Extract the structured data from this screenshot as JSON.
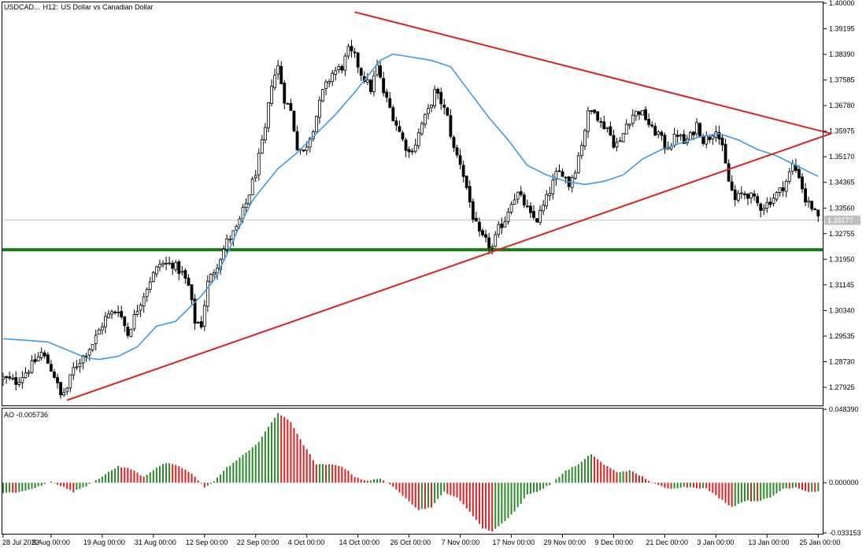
{
  "chart_data": [
    {
      "type": "candlestick",
      "header": {
        "symbol": "USDCAD...",
        "timeframe": "H12:",
        "description": "US Dollar vs Canadian Dollar"
      },
      "y_axis": {
        "range": [
          1.2738,
          1.4
        ],
        "tick_labels": [
          "1.40000",
          "1.39195",
          "1.38390",
          "1.37585",
          "1.36780",
          "1.35975",
          "1.35170",
          "1.34365",
          "1.33560",
          "1.32755",
          "1.31950",
          "1.31145",
          "1.30340",
          "1.29535",
          "1.28730",
          "1.27925"
        ],
        "current_price_label": "1.33177",
        "current_price": 1.33177
      },
      "x_axis": {
        "bar_count": 256,
        "tick_labels": [
          {
            "label": "28 Jul 2022",
            "bar": 0
          },
          {
            "label": "9 Aug 00:00",
            "bar": 15
          },
          {
            "label": "19 Aug 00:00",
            "bar": 31
          },
          {
            "label": "31 Aug 00:00",
            "bar": 47
          },
          {
            "label": "12 Sep 00:00",
            "bar": 63
          },
          {
            "label": "22 Sep 00:00",
            "bar": 79
          },
          {
            "label": "4 Oct 00:00",
            "bar": 95
          },
          {
            "label": "14 Oct 00:00",
            "bar": 111
          },
          {
            "label": "26 Oct 00:00",
            "bar": 127
          },
          {
            "label": "7 Nov 00:00",
            "bar": 143
          },
          {
            "label": "17 Nov 00:00",
            "bar": 159
          },
          {
            "label": "29 Nov 00:00",
            "bar": 175
          },
          {
            "label": "9 Dec 00:00",
            "bar": 191
          },
          {
            "label": "21 Dec 00:00",
            "bar": 207
          },
          {
            "label": "3 Jan 00:00",
            "bar": 223
          },
          {
            "label": "13 Jan 00:00",
            "bar": 239
          },
          {
            "label": "25 Jan 00:00",
            "bar": 255
          }
        ]
      },
      "close_anchors": [
        [
          0,
          1.282
        ],
        [
          4,
          1.281
        ],
        [
          8,
          1.285
        ],
        [
          12,
          1.29
        ],
        [
          14,
          1.287
        ],
        [
          16,
          1.283
        ],
        [
          18,
          1.2765
        ],
        [
          20,
          1.279
        ],
        [
          22,
          1.285
        ],
        [
          25,
          1.289
        ],
        [
          28,
          1.293
        ],
        [
          32,
          1.301
        ],
        [
          36,
          1.304
        ],
        [
          39,
          1.296
        ],
        [
          42,
          1.304
        ],
        [
          46,
          1.313
        ],
        [
          49,
          1.318
        ],
        [
          53,
          1.318
        ],
        [
          56,
          1.315
        ],
        [
          58,
          1.311
        ],
        [
          60,
          1.3
        ],
        [
          62,
          1.299
        ],
        [
          64,
          1.312
        ],
        [
          67,
          1.318
        ],
        [
          70,
          1.325
        ],
        [
          73,
          1.329
        ],
        [
          76,
          1.337
        ],
        [
          79,
          1.347
        ],
        [
          82,
          1.36
        ],
        [
          84,
          1.375
        ],
        [
          86,
          1.38
        ],
        [
          88,
          1.37
        ],
        [
          90,
          1.366
        ],
        [
          92,
          1.355
        ],
        [
          94,
          1.353
        ],
        [
          97,
          1.361
        ],
        [
          100,
          1.372
        ],
        [
          103,
          1.378
        ],
        [
          106,
          1.38
        ],
        [
          108,
          1.385
        ],
        [
          110,
          1.383
        ],
        [
          112,
          1.378
        ],
        [
          115,
          1.373
        ],
        [
          117,
          1.38
        ],
        [
          119,
          1.372
        ],
        [
          121,
          1.367
        ],
        [
          123,
          1.362
        ],
        [
          125,
          1.357
        ],
        [
          127,
          1.353
        ],
        [
          129,
          1.356
        ],
        [
          131,
          1.362
        ],
        [
          133,
          1.366
        ],
        [
          135,
          1.372
        ],
        [
          137,
          1.369
        ],
        [
          139,
          1.364
        ],
        [
          141,
          1.354
        ],
        [
          143,
          1.35
        ],
        [
          145,
          1.342
        ],
        [
          147,
          1.333
        ],
        [
          149,
          1.327
        ],
        [
          151,
          1.325
        ],
        [
          153,
          1.323
        ],
        [
          155,
          1.329
        ],
        [
          157,
          1.332
        ],
        [
          159,
          1.338
        ],
        [
          161,
          1.34
        ],
        [
          163,
          1.337
        ],
        [
          165,
          1.333
        ],
        [
          167,
          1.332
        ],
        [
          169,
          1.336
        ],
        [
          171,
          1.341
        ],
        [
          173,
          1.346
        ],
        [
          175,
          1.347
        ],
        [
          177,
          1.343
        ],
        [
          179,
          1.348
        ],
        [
          181,
          1.356
        ],
        [
          183,
          1.365
        ],
        [
          185,
          1.367
        ],
        [
          187,
          1.362
        ],
        [
          189,
          1.361
        ],
        [
          191,
          1.356
        ],
        [
          193,
          1.356
        ],
        [
          195,
          1.362
        ],
        [
          197,
          1.365
        ],
        [
          199,
          1.366
        ],
        [
          201,
          1.364
        ],
        [
          203,
          1.36
        ],
        [
          205,
          1.359
        ],
        [
          207,
          1.355
        ],
        [
          209,
          1.356
        ],
        [
          211,
          1.359
        ],
        [
          213,
          1.356
        ],
        [
          215,
          1.358
        ],
        [
          217,
          1.362
        ],
        [
          219,
          1.357
        ],
        [
          221,
          1.358
        ],
        [
          223,
          1.361
        ],
        [
          225,
          1.354
        ],
        [
          227,
          1.344
        ],
        [
          229,
          1.338
        ],
        [
          231,
          1.34
        ],
        [
          233,
          1.34
        ],
        [
          235,
          1.338
        ],
        [
          237,
          1.336
        ],
        [
          239,
          1.337
        ],
        [
          241,
          1.339
        ],
        [
          243,
          1.341
        ],
        [
          245,
          1.344
        ],
        [
          247,
          1.349
        ],
        [
          249,
          1.346
        ],
        [
          251,
          1.338
        ],
        [
          253,
          1.336
        ],
        [
          255,
          1.3318
        ]
      ],
      "moving_average": {
        "color": "#3d9be9",
        "points": [
          [
            0,
            1.2945
          ],
          [
            8,
            1.294
          ],
          [
            14,
            1.2935
          ],
          [
            20,
            1.291
          ],
          [
            26,
            1.2885
          ],
          [
            30,
            1.288
          ],
          [
            36,
            1.289
          ],
          [
            42,
            1.292
          ],
          [
            48,
            1.2985
          ],
          [
            54,
            1.3
          ],
          [
            58,
            1.304
          ],
          [
            62,
            1.308
          ],
          [
            66,
            1.313
          ],
          [
            70,
            1.321
          ],
          [
            74,
            1.33
          ],
          [
            78,
            1.338
          ],
          [
            82,
            1.343
          ],
          [
            86,
            1.348
          ],
          [
            92,
            1.353
          ],
          [
            98,
            1.359
          ],
          [
            104,
            1.365
          ],
          [
            110,
            1.372
          ],
          [
            114,
            1.377
          ],
          [
            118,
            1.382
          ],
          [
            122,
            1.384
          ],
          [
            128,
            1.383
          ],
          [
            134,
            1.382
          ],
          [
            140,
            1.38
          ],
          [
            146,
            1.372
          ],
          [
            152,
            1.364
          ],
          [
            158,
            1.357
          ],
          [
            164,
            1.349
          ],
          [
            170,
            1.346
          ],
          [
            176,
            1.344
          ],
          [
            182,
            1.343
          ],
          [
            188,
            1.344
          ],
          [
            194,
            1.346
          ],
          [
            200,
            1.351
          ],
          [
            206,
            1.354
          ],
          [
            212,
            1.356
          ],
          [
            218,
            1.358
          ],
          [
            224,
            1.359
          ],
          [
            230,
            1.357
          ],
          [
            236,
            1.354
          ],
          [
            242,
            1.352
          ],
          [
            248,
            1.349
          ],
          [
            255,
            1.3455
          ]
        ]
      },
      "trendlines": [
        {
          "color": "#e02020",
          "from": [
            20,
            1.2752
          ],
          "to": [
            259,
            1.359
          ]
        },
        {
          "color": "#e02020",
          "from": [
            110,
            1.3972
          ],
          "to": [
            259,
            1.359
          ]
        }
      ],
      "support_line": {
        "color": "#147a14",
        "price": 1.3225
      },
      "indicator": {
        "type": "bar",
        "name": "AO",
        "label": "AO -0.005736",
        "range": [
          -0.033153,
          0.04839
        ],
        "tick_labels": [
          "0.048390",
          "0.000000",
          "-0.033153"
        ],
        "rising_color": "#2a8a2a",
        "falling_color": "#e02020",
        "anchors": [
          [
            0,
            -0.007
          ],
          [
            6,
            -0.006
          ],
          [
            12,
            -0.002
          ],
          [
            15,
            0.001
          ],
          [
            18,
            -0.002
          ],
          [
            22,
            -0.006
          ],
          [
            26,
            -0.002
          ],
          [
            30,
            0.003
          ],
          [
            34,
            0.008
          ],
          [
            36,
            0.011
          ],
          [
            40,
            0.009
          ],
          [
            44,
            0.004
          ],
          [
            48,
            0.01
          ],
          [
            51,
            0.013
          ],
          [
            55,
            0.011
          ],
          [
            59,
            0.006
          ],
          [
            63,
            -0.003
          ],
          [
            66,
            0.001
          ],
          [
            70,
            0.01
          ],
          [
            75,
            0.018
          ],
          [
            80,
            0.027
          ],
          [
            84,
            0.04
          ],
          [
            86,
            0.046
          ],
          [
            90,
            0.04
          ],
          [
            94,
            0.025
          ],
          [
            98,
            0.012
          ],
          [
            102,
            0.012
          ],
          [
            106,
            0.011
          ],
          [
            110,
            0.004
          ],
          [
            114,
            0.001
          ],
          [
            118,
            0.003
          ],
          [
            122,
            -0.003
          ],
          [
            126,
            -0.01
          ],
          [
            130,
            -0.018
          ],
          [
            134,
            -0.016
          ],
          [
            138,
            -0.006
          ],
          [
            142,
            -0.01
          ],
          [
            146,
            -0.019
          ],
          [
            150,
            -0.03
          ],
          [
            153,
            -0.032
          ],
          [
            156,
            -0.027
          ],
          [
            160,
            -0.019
          ],
          [
            164,
            -0.008
          ],
          [
            168,
            -0.005
          ],
          [
            172,
            0.0
          ],
          [
            176,
            0.008
          ],
          [
            180,
            0.012
          ],
          [
            184,
            0.019
          ],
          [
            188,
            0.012
          ],
          [
            192,
            0.007
          ],
          [
            196,
            0.008
          ],
          [
            200,
            0.004
          ],
          [
            204,
            -0.001
          ],
          [
            208,
            -0.004
          ],
          [
            212,
            -0.003
          ],
          [
            216,
            -0.003
          ],
          [
            220,
            -0.004
          ],
          [
            224,
            -0.01
          ],
          [
            228,
            -0.016
          ],
          [
            232,
            -0.012
          ],
          [
            236,
            -0.012
          ],
          [
            240,
            -0.01
          ],
          [
            244,
            -0.004
          ],
          [
            248,
            -0.003
          ],
          [
            252,
            -0.006
          ],
          [
            255,
            -0.005736
          ]
        ]
      }
    }
  ]
}
